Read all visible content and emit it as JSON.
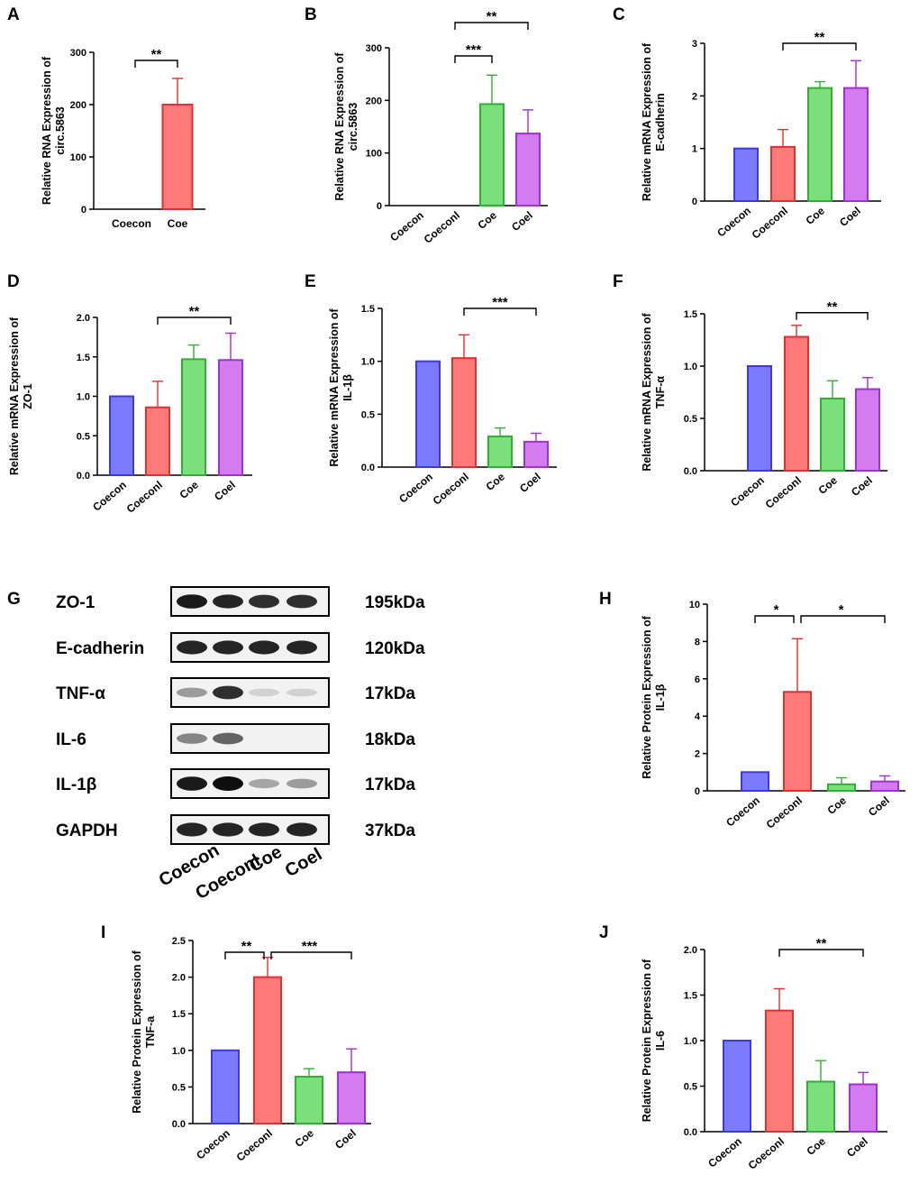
{
  "figure": {
    "colors": {
      "Coecon": {
        "fill": "#7b7bff",
        "stroke": "#3a3ae0"
      },
      "Coeconl": {
        "fill": "#ff7b7b",
        "stroke": "#e03030"
      },
      "Coe": {
        "fill": "#7be07b",
        "stroke": "#30b030"
      },
      "Coel": {
        "fill": "#d57bf0",
        "stroke": "#a030d0"
      }
    }
  },
  "chart_data": [
    {
      "panel": "A",
      "type": "bar",
      "ylabel": [
        "Relative RNA Expression of",
        "circ.5863"
      ],
      "ylim": [
        0,
        300
      ],
      "yticks": [
        0,
        100,
        200,
        300
      ],
      "categories": [
        "Coecon",
        "Coe"
      ],
      "values": [
        0,
        200
      ],
      "errors": [
        0,
        50
      ],
      "colors": [
        "Coecon",
        "Coeconl"
      ],
      "rotate": false,
      "significance": [
        {
          "from": 0,
          "to": 1,
          "label": "**"
        }
      ]
    },
    {
      "panel": "B",
      "type": "bar",
      "ylabel": [
        "Relative RNA Expression of",
        "circ.5863"
      ],
      "ylim": [
        0,
        300
      ],
      "yticks": [
        0,
        100,
        200,
        300
      ],
      "categories": [
        "Coecon",
        "Coeconl",
        "Coe",
        "Coel"
      ],
      "values": [
        0,
        0,
        193,
        137
      ],
      "errors": [
        0,
        0,
        55,
        45
      ],
      "colors": [
        "Coecon",
        "Coeconl",
        "Coe",
        "Coel"
      ],
      "rotate": true,
      "significance": [
        {
          "from": 1,
          "to": 3,
          "label": "**"
        },
        {
          "from": 1,
          "to": 2,
          "label": "***"
        }
      ]
    },
    {
      "panel": "C",
      "type": "bar",
      "ylabel": [
        "Relative mRNA Expression of",
        "E-cadherin"
      ],
      "ylim": [
        0,
        3
      ],
      "yticks": [
        0,
        1,
        2,
        3
      ],
      "categories": [
        "Coecon",
        "Coeconl",
        "Coe",
        "Coel"
      ],
      "values": [
        1.0,
        1.03,
        2.15,
        2.15
      ],
      "errors": [
        0,
        0.33,
        0.12,
        0.52
      ],
      "colors": [
        "Coecon",
        "Coeconl",
        "Coe",
        "Coel"
      ],
      "rotate": true,
      "significance": [
        {
          "from": 1,
          "to": 3,
          "label": "**"
        }
      ]
    },
    {
      "panel": "D",
      "type": "bar",
      "ylabel": [
        "Relative mRNA Expression of",
        "ZO-1"
      ],
      "ylim": [
        0,
        2.0
      ],
      "yticks": [
        "0.0",
        "0.5",
        "1.0",
        "1.5",
        "2.0"
      ],
      "categories": [
        "Coecon",
        "Coeconl",
        "Coe",
        "Coel"
      ],
      "values": [
        1.0,
        0.86,
        1.47,
        1.46
      ],
      "errors": [
        0,
        0.33,
        0.18,
        0.34
      ],
      "colors": [
        "Coecon",
        "Coeconl",
        "Coe",
        "Coel"
      ],
      "rotate": true,
      "significance": [
        {
          "from": 1,
          "to": 3,
          "label": "**"
        }
      ]
    },
    {
      "panel": "E",
      "type": "bar",
      "ylabel": [
        "Relative mRNA Expression of",
        "IL-1β"
      ],
      "ylim": [
        0,
        1.5
      ],
      "yticks": [
        "0.0",
        "0.5",
        "1.0",
        "1.5"
      ],
      "categories": [
        "Coecon",
        "Coeconl",
        "Coe",
        "Coel"
      ],
      "values": [
        1.0,
        1.03,
        0.29,
        0.24
      ],
      "errors": [
        0,
        0.22,
        0.08,
        0.08
      ],
      "colors": [
        "Coecon",
        "Coeconl",
        "Coe",
        "Coel"
      ],
      "rotate": true,
      "significance": [
        {
          "from": 1,
          "to": 3,
          "label": "***"
        }
      ]
    },
    {
      "panel": "F",
      "type": "bar",
      "ylabel": [
        "Relative mRNA Expression of",
        "TNF-α"
      ],
      "ylim": [
        0,
        1.5
      ],
      "yticks": [
        "0.0",
        "0.5",
        "1.0",
        "1.5"
      ],
      "categories": [
        "Coecon",
        "Coeconl",
        "Coe",
        "Coel"
      ],
      "values": [
        1.0,
        1.28,
        0.69,
        0.78
      ],
      "errors": [
        0,
        0.11,
        0.17,
        0.11
      ],
      "colors": [
        "Coecon",
        "Coeconl",
        "Coe",
        "Coel"
      ],
      "rotate": true,
      "significance": [
        {
          "from": 1,
          "to": 3,
          "label": "**"
        }
      ]
    },
    {
      "panel": "H",
      "type": "bar",
      "ylabel": [
        "Relative Protein Expression of",
        "IL-1β"
      ],
      "ylim": [
        0,
        10
      ],
      "yticks": [
        0,
        2,
        4,
        6,
        8,
        10
      ],
      "categories": [
        "Coecon",
        "Coeconl",
        "Coe",
        "Coel"
      ],
      "values": [
        1.0,
        5.3,
        0.35,
        0.5
      ],
      "errors": [
        0,
        2.85,
        0.35,
        0.3
      ],
      "colors": [
        "Coecon",
        "Coeconl",
        "Coe",
        "Coel"
      ],
      "rotate": true,
      "significance": [
        {
          "from": 0,
          "to": 1,
          "label": "*"
        },
        {
          "from": 1,
          "to": 3,
          "label": "*"
        }
      ]
    },
    {
      "panel": "I",
      "type": "bar",
      "ylabel": [
        "Relative Protein Expression of",
        "TNF-a"
      ],
      "ylim": [
        0,
        2.5
      ],
      "yticks": [
        "0.0",
        "0.5",
        "1.0",
        "1.5",
        "2.0",
        "2.5"
      ],
      "categories": [
        "Coecon",
        "Coeconl",
        "Coe",
        "Coel"
      ],
      "values": [
        1.0,
        2.0,
        0.64,
        0.7
      ],
      "errors": [
        0,
        0.27,
        0.11,
        0.32
      ],
      "colors": [
        "Coecon",
        "Coeconl",
        "Coe",
        "Coel"
      ],
      "rotate": true,
      "significance": [
        {
          "from": 0,
          "to": 1,
          "label": "**"
        },
        {
          "from": 1,
          "to": 3,
          "label": "***"
        }
      ]
    },
    {
      "panel": "J",
      "type": "bar",
      "ylabel": [
        "Relative Protein Expression of",
        "IL-6"
      ],
      "ylim": [
        0,
        2.0
      ],
      "yticks": [
        "0.0",
        "0.5",
        "1.0",
        "1.5",
        "2.0"
      ],
      "categories": [
        "Coecon",
        "Coeconl",
        "Coe",
        "Coel"
      ],
      "values": [
        1.0,
        1.33,
        0.55,
        0.52
      ],
      "errors": [
        0,
        0.24,
        0.23,
        0.13
      ],
      "colors": [
        "Coecon",
        "Coeconl",
        "Coe",
        "Coel"
      ],
      "rotate": true,
      "significance": [
        {
          "from": 1,
          "to": 3,
          "label": "**"
        }
      ]
    }
  ],
  "western_blot": {
    "panel": "G",
    "bands": [
      {
        "protein": "ZO-1",
        "size": "195kDa",
        "intensity": [
          0.95,
          0.9,
          0.85,
          0.85
        ]
      },
      {
        "protein": "E-cadherin",
        "size": "120kDa",
        "intensity": [
          0.9,
          0.9,
          0.9,
          0.9
        ]
      },
      {
        "protein": "TNF-α",
        "size": "17kDa",
        "intensity": [
          0.35,
          0.85,
          0.1,
          0.1
        ]
      },
      {
        "protein": "IL-6",
        "size": "18kDa",
        "intensity": [
          0.45,
          0.6,
          0.03,
          0.03
        ]
      },
      {
        "protein": "IL-1β",
        "size": "17kDa",
        "intensity": [
          0.95,
          1.0,
          0.3,
          0.35
        ]
      },
      {
        "protein": "GAPDH",
        "size": "37kDa",
        "intensity": [
          0.9,
          0.9,
          0.9,
          0.9
        ]
      }
    ],
    "lanes": [
      "Coecon",
      "Coeconl",
      "Coe",
      "Coel"
    ]
  }
}
